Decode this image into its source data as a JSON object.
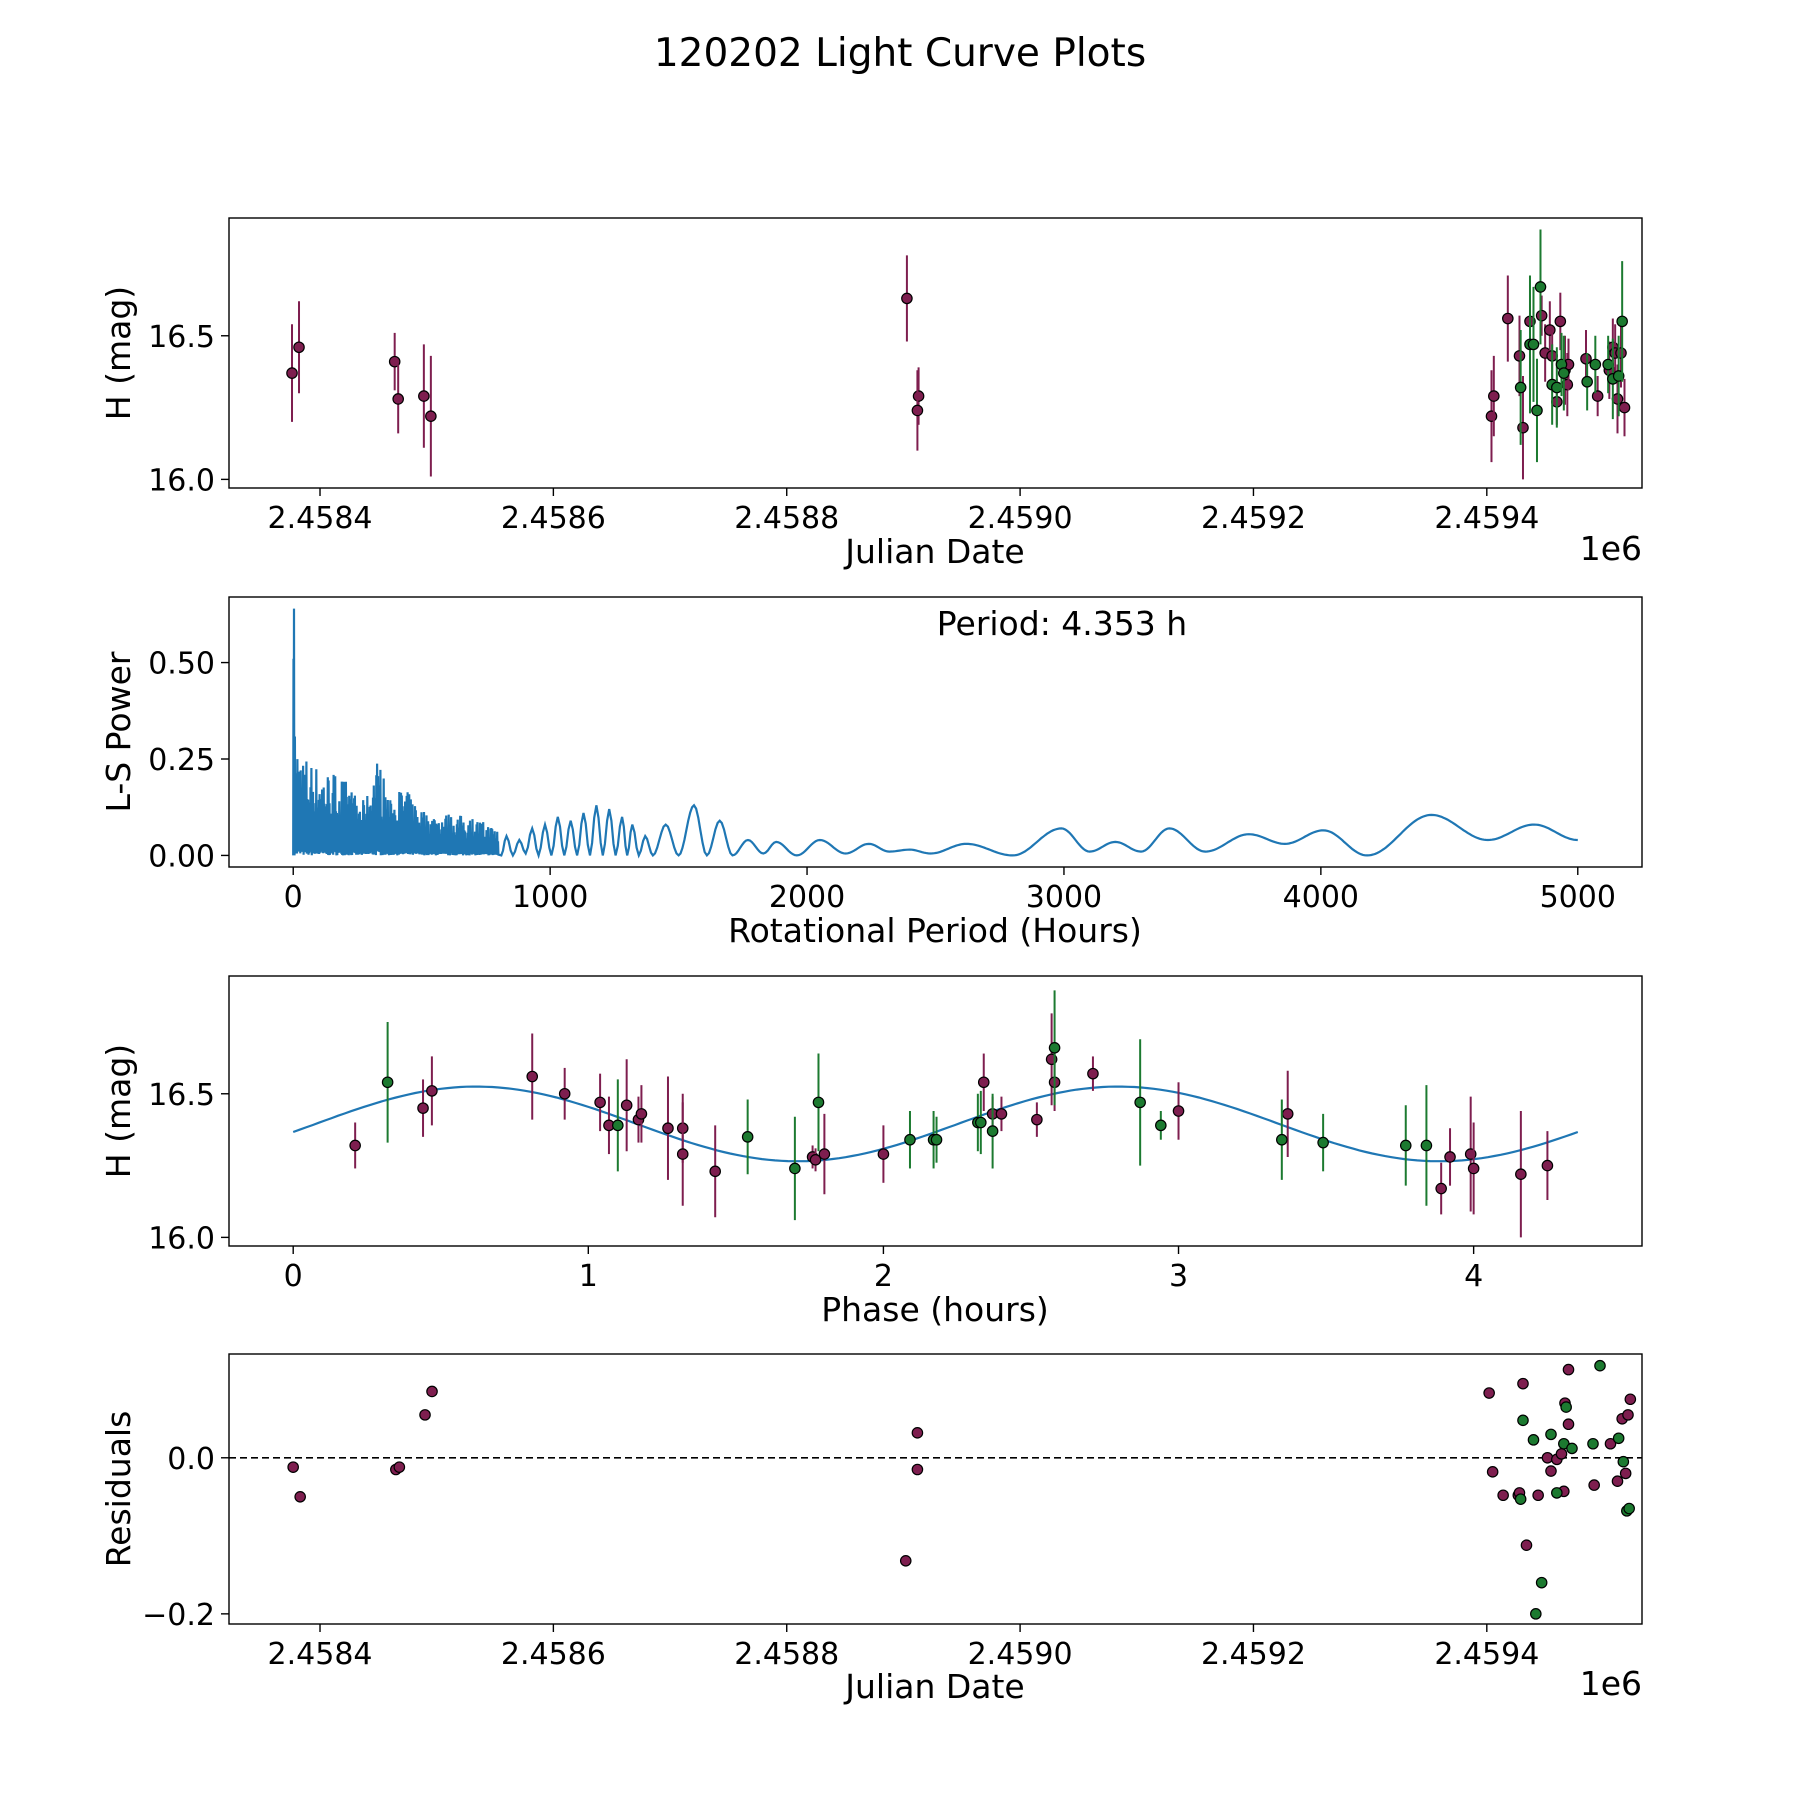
{
  "figure_title": "120202 Light Curve Plots",
  "colors": {
    "magenta": "#7e1e4f",
    "green": "#1c7a30",
    "curve": "#1f77b4",
    "edge": "#000000"
  },
  "chart_data": [
    {
      "id": "p1",
      "type": "scatter",
      "xlabel": "Julian Date",
      "ylabel": "H (mag)",
      "offset_text": "1e6",
      "xlim": [
        2458322,
        2459533
      ],
      "ylim": [
        15.97,
        16.91
      ],
      "x_ticks": [
        2458400,
        2458600,
        2458800,
        2459000,
        2459200,
        2459400
      ],
      "x_tick_labels": [
        "2.4584",
        "2.4586",
        "2.4588",
        "2.4590",
        "2.4592",
        "2.4594"
      ],
      "y_ticks": [
        16.0,
        16.5
      ],
      "y_tick_labels": [
        "16.0",
        "16.5"
      ],
      "series": [
        {
          "name": "magenta",
          "color": "magenta",
          "points": [
            [
              2458376,
              16.37,
              0.17
            ],
            [
              2458382,
              16.46,
              0.16
            ],
            [
              2458464,
              16.41,
              0.1
            ],
            [
              2458467,
              16.28,
              0.12
            ],
            [
              2458489,
              16.29,
              0.18
            ],
            [
              2458495,
              16.22,
              0.21
            ],
            [
              2458903,
              16.63,
              0.15
            ],
            [
              2458913,
              16.29,
              0.1
            ],
            [
              2458912,
              16.24,
              0.14
            ],
            [
              2459404,
              16.22,
              0.16
            ],
            [
              2459406,
              16.29,
              0.14
            ],
            [
              2459418,
              16.56,
              0.15
            ],
            [
              2459428,
              16.43,
              0.14
            ],
            [
              2459431,
              16.18,
              0.18
            ],
            [
              2459437,
              16.55,
              0.1
            ],
            [
              2459447,
              16.57,
              0.07
            ],
            [
              2459450,
              16.44,
              0.1
            ],
            [
              2459454,
              16.52,
              0.1
            ],
            [
              2459456,
              16.43,
              0.1
            ],
            [
              2459460,
              16.27,
              0.08
            ],
            [
              2459463,
              16.55,
              0.1
            ],
            [
              2459467,
              16.38,
              0.12
            ],
            [
              2459469,
              16.33,
              0.11
            ],
            [
              2459470,
              16.4,
              0.09
            ],
            [
              2459485,
              16.42,
              0.1
            ],
            [
              2459495,
              16.29,
              0.07
            ],
            [
              2459505,
              16.38,
              0.1
            ],
            [
              2459508,
              16.46,
              0.1
            ],
            [
              2459510,
              16.44,
              0.1
            ],
            [
              2459512,
              16.28,
              0.12
            ],
            [
              2459515,
              16.44,
              0.12
            ],
            [
              2459518,
              16.25,
              0.1
            ]
          ]
        },
        {
          "name": "green",
          "color": "green",
          "points": [
            [
              2459429,
              16.32,
              0.2
            ],
            [
              2459437,
              16.47,
              0.24
            ],
            [
              2459440,
              16.47,
              0.2
            ],
            [
              2459443,
              16.24,
              0.18
            ],
            [
              2459446,
              16.67,
              0.2
            ],
            [
              2459456,
              16.33,
              0.14
            ],
            [
              2459460,
              16.32,
              0.14
            ],
            [
              2459464,
              16.4,
              0.11
            ],
            [
              2459466,
              16.37,
              0.13
            ],
            [
              2459486,
              16.34,
              0.1
            ],
            [
              2459493,
              16.4,
              0.1
            ],
            [
              2459504,
              16.4,
              0.1
            ],
            [
              2459508,
              16.35,
              0.14
            ],
            [
              2459513,
              16.36,
              0.14
            ],
            [
              2459516,
              16.55,
              0.21
            ]
          ]
        }
      ]
    },
    {
      "id": "p2",
      "type": "line",
      "xlabel": "Rotational Period (Hours)",
      "ylabel": "L-S Power",
      "annotation": "Period: 4.353 h",
      "xlim": [
        -250,
        5250
      ],
      "ylim": [
        -0.03,
        0.67
      ],
      "x_ticks": [
        0,
        1000,
        2000,
        3000,
        4000,
        5000
      ],
      "x_tick_labels": [
        "0",
        "1000",
        "2000",
        "3000",
        "4000",
        "5000"
      ],
      "y_ticks": [
        0.0,
        0.25,
        0.5
      ],
      "y_tick_labels": [
        "0.00",
        "0.25",
        "0.50"
      ],
      "envelope": [
        [
          0,
          0.64
        ],
        [
          5,
          0.33
        ],
        [
          15,
          0.3
        ],
        [
          30,
          0.27
        ],
        [
          50,
          0.26
        ],
        [
          80,
          0.24
        ],
        [
          120,
          0.22
        ],
        [
          160,
          0.22
        ],
        [
          200,
          0.2
        ],
        [
          240,
          0.16
        ],
        [
          280,
          0.14
        ],
        [
          330,
          0.26
        ],
        [
          380,
          0.14
        ],
        [
          420,
          0.18
        ],
        [
          470,
          0.15
        ],
        [
          520,
          0.11
        ],
        [
          600,
          0.11
        ],
        [
          700,
          0.1
        ],
        [
          800,
          0.07
        ]
      ],
      "peaks": [
        [
          830,
          0.05
        ],
        [
          880,
          0.04
        ],
        [
          930,
          0.07
        ],
        [
          980,
          0.08
        ],
        [
          1030,
          0.1
        ],
        [
          1080,
          0.09
        ],
        [
          1130,
          0.11
        ],
        [
          1180,
          0.13
        ],
        [
          1230,
          0.12
        ],
        [
          1280,
          0.1
        ],
        [
          1320,
          0.08
        ],
        [
          1370,
          0.05
        ],
        [
          1450,
          0.08
        ],
        [
          1560,
          0.13
        ],
        [
          1660,
          0.09
        ],
        [
          1770,
          0.04
        ],
        [
          1880,
          0.035
        ],
        [
          2050,
          0.04
        ],
        [
          2240,
          0.03
        ],
        [
          2400,
          0.015
        ],
        [
          2620,
          0.03
        ],
        [
          2990,
          0.07
        ],
        [
          3200,
          0.035
        ],
        [
          3410,
          0.07
        ],
        [
          3720,
          0.055
        ],
        [
          4010,
          0.065
        ],
        [
          4430,
          0.105
        ],
        [
          4830,
          0.08
        ],
        [
          5000,
          0.04
        ]
      ],
      "troughs": [
        [
          1300,
          0.0
        ],
        [
          1400,
          0.0
        ],
        [
          1500,
          0.0
        ],
        [
          1610,
          0.0
        ],
        [
          1710,
          0.0
        ],
        [
          1830,
          0.005
        ],
        [
          1960,
          0.0
        ],
        [
          2150,
          0.005
        ],
        [
          2320,
          0.01
        ],
        [
          2480,
          0.005
        ],
        [
          2800,
          0.0
        ],
        [
          3100,
          0.01
        ],
        [
          3300,
          0.01
        ],
        [
          3550,
          0.01
        ],
        [
          3860,
          0.03
        ],
        [
          4180,
          0.0
        ],
        [
          4650,
          0.04
        ]
      ]
    },
    {
      "id": "p3",
      "type": "scatter",
      "xlabel": "Phase (hours)",
      "ylabel": "H (mag)",
      "xlim": [
        -0.2175,
        4.5705
      ],
      "ylim": [
        15.97,
        16.91
      ],
      "x_ticks": [
        0,
        1,
        2,
        3,
        4
      ],
      "x_tick_labels": [
        "0",
        "1",
        "2",
        "3",
        "4"
      ],
      "y_ticks": [
        16.0,
        16.5
      ],
      "y_tick_labels": [
        "16.0",
        "16.5"
      ],
      "model": {
        "mean": 16.395,
        "amplitude": 0.13,
        "period": 4.353,
        "harmonic": 2,
        "phase_peak": 0.62,
        "x_range": [
          0,
          4.353
        ]
      },
      "series": [
        {
          "name": "magenta",
          "color": "magenta",
          "points": [
            [
              0.21,
              16.32,
              0.08
            ],
            [
              0.44,
              16.45,
              0.1
            ],
            [
              0.47,
              16.51,
              0.12
            ],
            [
              0.81,
              16.56,
              0.15
            ],
            [
              0.92,
              16.5,
              0.09
            ],
            [
              1.04,
              16.47,
              0.1
            ],
            [
              1.07,
              16.39,
              0.1
            ],
            [
              1.13,
              16.46,
              0.16
            ],
            [
              1.17,
              16.41,
              0.08
            ],
            [
              1.18,
              16.43,
              0.1
            ],
            [
              1.27,
              16.38,
              0.18
            ],
            [
              1.32,
              16.38,
              0.12
            ],
            [
              1.32,
              16.29,
              0.18
            ],
            [
              1.43,
              16.23,
              0.16
            ],
            [
              1.76,
              16.28,
              0.04
            ],
            [
              1.77,
              16.27,
              0.04
            ],
            [
              1.8,
              16.29,
              0.14
            ],
            [
              2.0,
              16.29,
              0.1
            ],
            [
              2.34,
              16.54,
              0.1
            ],
            [
              2.37,
              16.43,
              0.06
            ],
            [
              2.4,
              16.43,
              0.06
            ],
            [
              2.52,
              16.41,
              0.06
            ],
            [
              2.57,
              16.62,
              0.16
            ],
            [
              2.58,
              16.54,
              0.1
            ],
            [
              2.71,
              16.57,
              0.06
            ],
            [
              3.0,
              16.44,
              0.1
            ],
            [
              3.37,
              16.43,
              0.15
            ],
            [
              3.89,
              16.17,
              0.09
            ],
            [
              3.92,
              16.28,
              0.1
            ],
            [
              3.99,
              16.29,
              0.2
            ],
            [
              4.0,
              16.24,
              0.16
            ],
            [
              4.16,
              16.22,
              0.22
            ],
            [
              4.25,
              16.25,
              0.12
            ]
          ]
        },
        {
          "name": "green",
          "color": "green",
          "points": [
            [
              0.32,
              16.54,
              0.21
            ],
            [
              1.1,
              16.39,
              0.16
            ],
            [
              1.54,
              16.35,
              0.13
            ],
            [
              1.7,
              16.24,
              0.18
            ],
            [
              1.78,
              16.47,
              0.17
            ],
            [
              2.09,
              16.34,
              0.1
            ],
            [
              2.17,
              16.34,
              0.1
            ],
            [
              2.18,
              16.34,
              0.08
            ],
            [
              2.32,
              16.4,
              0.1
            ],
            [
              2.33,
              16.4,
              0.11
            ],
            [
              2.37,
              16.37,
              0.13
            ],
            [
              2.58,
              16.66,
              0.2
            ],
            [
              2.87,
              16.47,
              0.22
            ],
            [
              2.94,
              16.39,
              0.05
            ],
            [
              3.35,
              16.34,
              0.14
            ],
            [
              3.49,
              16.33,
              0.1
            ],
            [
              3.77,
              16.32,
              0.14
            ],
            [
              3.84,
              16.32,
              0.21
            ]
          ]
        }
      ]
    },
    {
      "id": "p4",
      "type": "scatter",
      "xlabel": "Julian Date",
      "ylabel": "Residuals",
      "offset_text": "1e6",
      "xlim": [
        2458322,
        2459533
      ],
      "ylim": [
        -0.213,
        0.133
      ],
      "x_ticks": [
        2458400,
        2458600,
        2458800,
        2459000,
        2459200,
        2459400
      ],
      "x_tick_labels": [
        "2.4584",
        "2.4586",
        "2.4588",
        "2.4590",
        "2.4592",
        "2.4594"
      ],
      "y_ticks": [
        -0.2,
        0.0
      ],
      "y_tick_labels": [
        "−0.2",
        "0.0"
      ],
      "zero_line": 0.0,
      "series": [
        {
          "name": "magenta",
          "color": "magenta",
          "points": [
            [
              2458377,
              -0.012
            ],
            [
              2458383,
              -0.05
            ],
            [
              2458465,
              -0.015
            ],
            [
              2458468,
              -0.012
            ],
            [
              2458490,
              0.055
            ],
            [
              2458496,
              0.085
            ],
            [
              2458902,
              -0.132
            ],
            [
              2458912,
              0.032
            ],
            [
              2458912,
              -0.015
            ],
            [
              2459402,
              0.083
            ],
            [
              2459405,
              -0.018
            ],
            [
              2459414,
              -0.048
            ],
            [
              2459427,
              -0.048
            ],
            [
              2459428,
              -0.045
            ],
            [
              2459431,
              0.095
            ],
            [
              2459434,
              -0.112
            ],
            [
              2459444,
              -0.048
            ],
            [
              2459452,
              0.0
            ],
            [
              2459455,
              -0.017
            ],
            [
              2459460,
              -0.002
            ],
            [
              2459464,
              0.005
            ],
            [
              2459466,
              -0.043
            ],
            [
              2459467,
              0.07
            ],
            [
              2459470,
              0.043
            ],
            [
              2459470,
              0.113
            ],
            [
              2459492,
              -0.035
            ],
            [
              2459506,
              0.018
            ],
            [
              2459512,
              -0.03
            ],
            [
              2459516,
              0.05
            ],
            [
              2459519,
              -0.02
            ],
            [
              2459521,
              0.055
            ],
            [
              2459523,
              0.075
            ]
          ]
        },
        {
          "name": "green",
          "color": "green",
          "points": [
            [
              2459429,
              -0.053
            ],
            [
              2459431,
              0.048
            ],
            [
              2459440,
              0.023
            ],
            [
              2459442,
              -0.2
            ],
            [
              2459447,
              -0.16
            ],
            [
              2459455,
              0.03
            ],
            [
              2459460,
              -0.045
            ],
            [
              2459466,
              0.018
            ],
            [
              2459468,
              0.065
            ],
            [
              2459473,
              0.012
            ],
            [
              2459491,
              0.018
            ],
            [
              2459497,
              0.118
            ],
            [
              2459513,
              0.025
            ],
            [
              2459517,
              -0.005
            ],
            [
              2459520,
              -0.068
            ],
            [
              2459522,
              -0.065
            ]
          ]
        }
      ]
    }
  ]
}
